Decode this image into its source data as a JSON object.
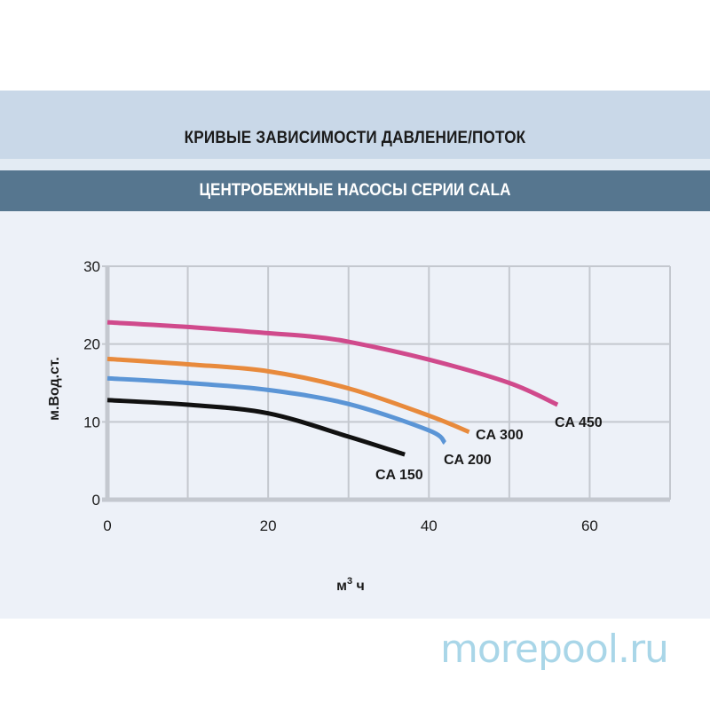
{
  "header": {
    "title": "КРИВЫЕ ЗАВИСИМОСТИ ДАВЛЕНИЕ/ПОТОК",
    "subtitle": "ЦЕНТРОБЕЖНЫЕ НАСОСЫ СЕРИИ CALA"
  },
  "watermark": "morepool.ru",
  "colors": {
    "title_band": "#c9d8e8",
    "subtitle_band": "#56768f",
    "panel": "#edf1f8",
    "grid": "#c4c8cf",
    "CA 450": "#d04a8c",
    "CA 300": "#e88a3c",
    "CA 200": "#5b95d6",
    "CA 150": "#111111"
  },
  "chart_data": {
    "type": "line",
    "title": "КРИВЫЕ ЗАВИСИМОСТИ ДАВЛЕНИЕ/ПОТОК",
    "subtitle": "ЦЕНТРОБЕЖНЫЕ НАСОСЫ СЕРИИ CALA",
    "xlabel": "м³ч",
    "ylabel": "м.Вод.ст.",
    "xlim": [
      0,
      70
    ],
    "ylim": [
      0,
      30
    ],
    "xticks": [
      0,
      20,
      40,
      60
    ],
    "yticks": [
      0,
      10,
      20,
      30
    ],
    "grid": true,
    "x_grid_step": 10,
    "y_grid_step": 10,
    "legend_position": "inline labels at curve ends",
    "series": [
      {
        "name": "CA 450",
        "color": "#d04a8c",
        "x": [
          0,
          10,
          20,
          25,
          30,
          40,
          50,
          56
        ],
        "y": [
          22.8,
          22.2,
          21.4,
          21.0,
          20.3,
          18.0,
          15.0,
          12.2
        ]
      },
      {
        "name": "CA 300",
        "color": "#e88a3c",
        "x": [
          0,
          10,
          20,
          30,
          40,
          45
        ],
        "y": [
          18.1,
          17.4,
          16.5,
          14.3,
          10.8,
          8.7
        ]
      },
      {
        "name": "CA 200",
        "color": "#5b95d6",
        "x": [
          0,
          10,
          20,
          30,
          40,
          42
        ],
        "y": [
          15.6,
          15.0,
          14.1,
          12.3,
          8.9,
          7.3
        ]
      },
      {
        "name": "CA 150",
        "color": "#111111",
        "x": [
          0,
          10,
          20,
          30,
          37
        ],
        "y": [
          12.8,
          12.2,
          11.1,
          8.1,
          5.8
        ]
      }
    ]
  }
}
